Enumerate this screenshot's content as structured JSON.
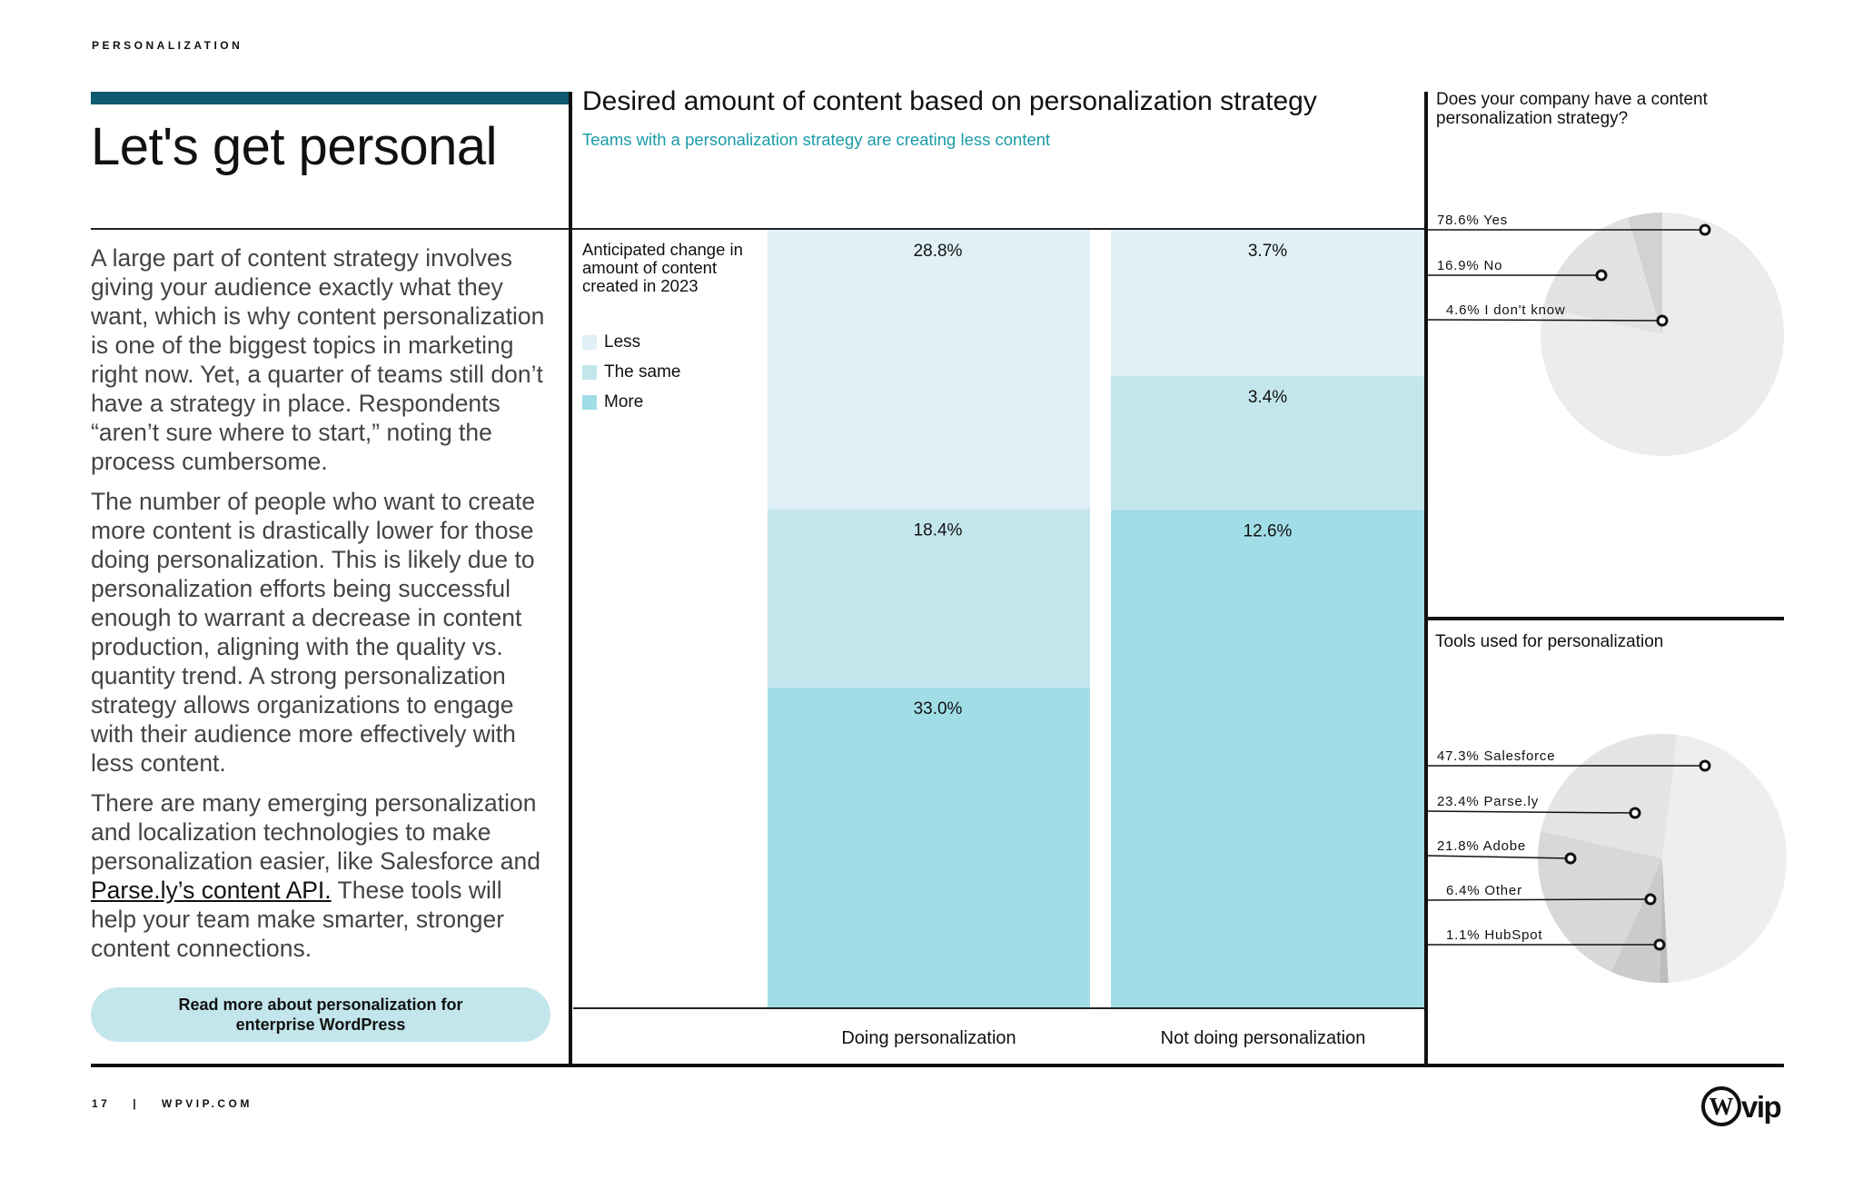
{
  "header": {
    "section": "PERSONALIZATION"
  },
  "left": {
    "title": "Let's get personal",
    "paragraph1": "A large part of content strategy involves giving your audience exactly what they want, which is why content personalization is one of the biggest topics in marketing right now. Yet, a quarter of teams still don’t have a strategy in place. Respondents “aren’t sure where to start,” noting the process cumbersome.",
    "paragraph2": "The number of people who want to create more content is drastically lower for those doing personalization. This is likely due to personalization efforts being successful enough to warrant a decrease in content production, aligning with the quality vs. quantity trend. A strong personalization strategy allows organizations to engage with their audience more effectively with less content.",
    "paragraph3_before": "There are many emerging personalization and localization technologies to make personalization easier, like Salesforce and ",
    "paragraph3_link": "Parse.ly’s content API.",
    "paragraph3_after": " These tools will help your team make smarter, stronger content connections.",
    "cta": "Read more about personalization for enterprise WordPress"
  },
  "footer": {
    "page_number": "17",
    "separator": "|",
    "site": "WPVIP.COM",
    "logo_text": "vip"
  },
  "colors": {
    "accent": "#0e5a6e",
    "teal_text": "#1a9ba8",
    "less": "#e0f0f6",
    "same": "#c3e6ec",
    "more": "#a1dde7",
    "cta_bg": "#c3e6ec"
  },
  "chart_data": [
    {
      "type": "bar",
      "stacked": true,
      "title": "Desired amount of content based on personalization strategy",
      "subtitle": "Teams with a personalization strategy are creating less content",
      "legend_title": "Anticipated change in amount of content created in 2023",
      "categories": [
        "Doing personalization",
        "Not doing personalization"
      ],
      "series": [
        {
          "name": "Less",
          "values": [
            28.8,
            3.7
          ],
          "labels": [
            "28.8%",
            "3.7%"
          ],
          "color": "#e0f0f6"
        },
        {
          "name": "The same",
          "values": [
            18.4,
            3.4
          ],
          "labels": [
            "18.4%",
            "3.4%"
          ],
          "color": "#c3e6ec"
        },
        {
          "name": "More",
          "values": [
            33.0,
            12.6
          ],
          "labels": [
            "33.0%",
            "12.6%"
          ],
          "color": "#a1dde7"
        }
      ],
      "normalized": true,
      "legend_position": "left"
    },
    {
      "type": "pie",
      "title": "Does your company have a content personalization strategy?",
      "slices": [
        {
          "name": "Yes",
          "value": 78.6,
          "label": "78.6%",
          "color": "#ececec"
        },
        {
          "name": "No",
          "value": 16.9,
          "label": "16.9%",
          "color": "#e2e2e2"
        },
        {
          "name": "I don't know",
          "value": 4.6,
          "label": "4.6%",
          "color": "#d2d2d2"
        }
      ]
    },
    {
      "type": "pie",
      "title": "Tools used for personalization",
      "slices": [
        {
          "name": "Salesforce",
          "value": 47.3,
          "label": "47.3%",
          "color": "#eeeeee"
        },
        {
          "name": "Parse.ly",
          "value": 23.4,
          "label": "23.4%",
          "color": "#e4e4e4"
        },
        {
          "name": "Adobe",
          "value": 21.8,
          "label": "21.8%",
          "color": "#d8d8d8"
        },
        {
          "name": "Other",
          "value": 6.4,
          "label": "6.4%",
          "color": "#cbcbcb"
        },
        {
          "name": "HubSpot",
          "value": 1.1,
          "label": "1.1%",
          "color": "#bdbdbd"
        }
      ]
    }
  ]
}
